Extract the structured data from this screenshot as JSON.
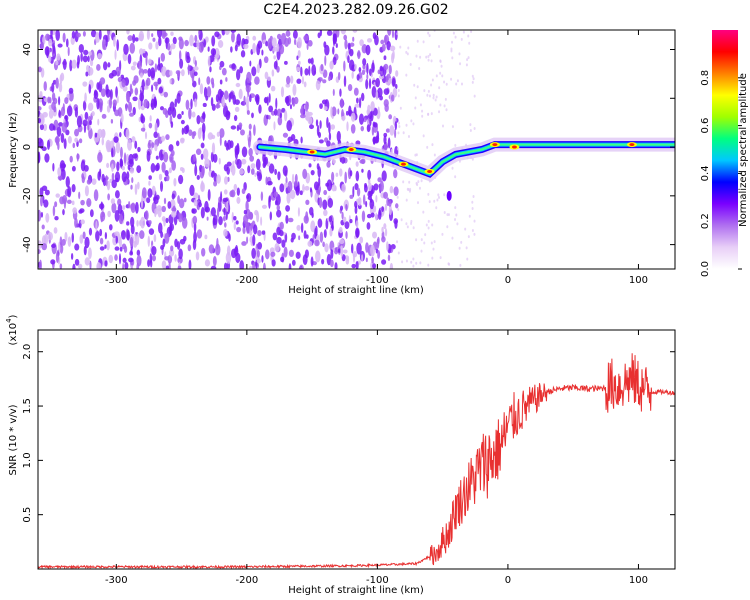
{
  "title": "C2E4.2023.282.09.26.G02",
  "chart_data": [
    {
      "type": "heatmap",
      "xlabel": "Height of straight line (km)",
      "ylabel": "Frequency (Hz)",
      "xlim": [
        -360,
        128
      ],
      "ylim": [
        -50,
        48
      ],
      "xticks": [
        -300,
        -200,
        -100,
        0,
        100
      ],
      "yticks": [
        -40,
        -20,
        0,
        20,
        40
      ],
      "noise_region_x": [
        -360,
        -85
      ],
      "signal_track": {
        "x": [
          -190,
          -170,
          -155,
          -140,
          -125,
          -110,
          -95,
          -80,
          -70,
          -60,
          -50,
          -40,
          -30,
          -20,
          -10,
          0,
          10,
          30,
          50,
          80,
          100,
          128
        ],
        "y": [
          0,
          -1,
          -2,
          -3,
          -1,
          -2,
          -4,
          -7,
          -9,
          -11,
          -6,
          -3,
          -2,
          -1,
          1,
          1,
          1,
          1,
          1,
          1,
          1,
          1
        ]
      },
      "hot_spots": [
        {
          "x": -150,
          "y": -2
        },
        {
          "x": -120,
          "y": -1
        },
        {
          "x": -80,
          "y": -7
        },
        {
          "x": -60,
          "y": -10
        },
        {
          "x": -10,
          "y": 1
        },
        {
          "x": 5,
          "y": 0
        },
        {
          "x": 95,
          "y": 1
        }
      ],
      "isolated_blob": {
        "x": -45,
        "y": -20
      },
      "colorbar": {
        "label": "Normalized spectral amplitude",
        "range": [
          0,
          1.0
        ],
        "ticks": [
          "0.0",
          "0.2",
          "0.4",
          "0.6",
          "0.8"
        ],
        "colors": [
          "#ffffff",
          "#e8cff7",
          "#b070f0",
          "#7a00ff",
          "#0000ff",
          "#00c8ff",
          "#00ff80",
          "#a0ff00",
          "#ffff00",
          "#ff8000",
          "#ff0000",
          "#ff0080"
        ]
      },
      "grid": false
    },
    {
      "type": "line",
      "xlabel": "Height of straight line (km)",
      "ylabel": "SNR (10 * v/v)",
      "multiplier_label": "(x10",
      "multiplier_exp": "4",
      "multiplier_close": ")",
      "xlim": [
        -360,
        128
      ],
      "ylim": [
        0,
        2.2
      ],
      "xticks": [
        -300,
        -200,
        -100,
        0,
        100
      ],
      "yticks": [
        0.5,
        1.0,
        1.5,
        2.0
      ],
      "ytick_labels": [
        "0.5",
        "1.0",
        "1.5",
        "2.0"
      ],
      "color": "#e83030",
      "series": [
        {
          "x": [
            -360,
            -300,
            -200,
            -120,
            -90,
            -70,
            -55,
            -45,
            -40,
            -35,
            -30,
            -25,
            -20,
            -15,
            -10,
            -5,
            0,
            5,
            10,
            15,
            20,
            25,
            30,
            40,
            50,
            60,
            70,
            75,
            80,
            85,
            90,
            95,
            100,
            105,
            110,
            120,
            128
          ],
          "y": [
            0.02,
            0.02,
            0.02,
            0.03,
            0.04,
            0.05,
            0.15,
            0.35,
            0.55,
            0.65,
            0.75,
            0.85,
            0.95,
            1.0,
            1.05,
            1.15,
            1.3,
            1.4,
            1.45,
            1.5,
            1.55,
            1.6,
            1.63,
            1.66,
            1.67,
            1.66,
            1.66,
            1.67,
            1.7,
            1.68,
            1.72,
            1.75,
            1.7,
            1.65,
            1.63,
            1.63,
            1.62
          ]
        }
      ],
      "grid": false
    }
  ]
}
